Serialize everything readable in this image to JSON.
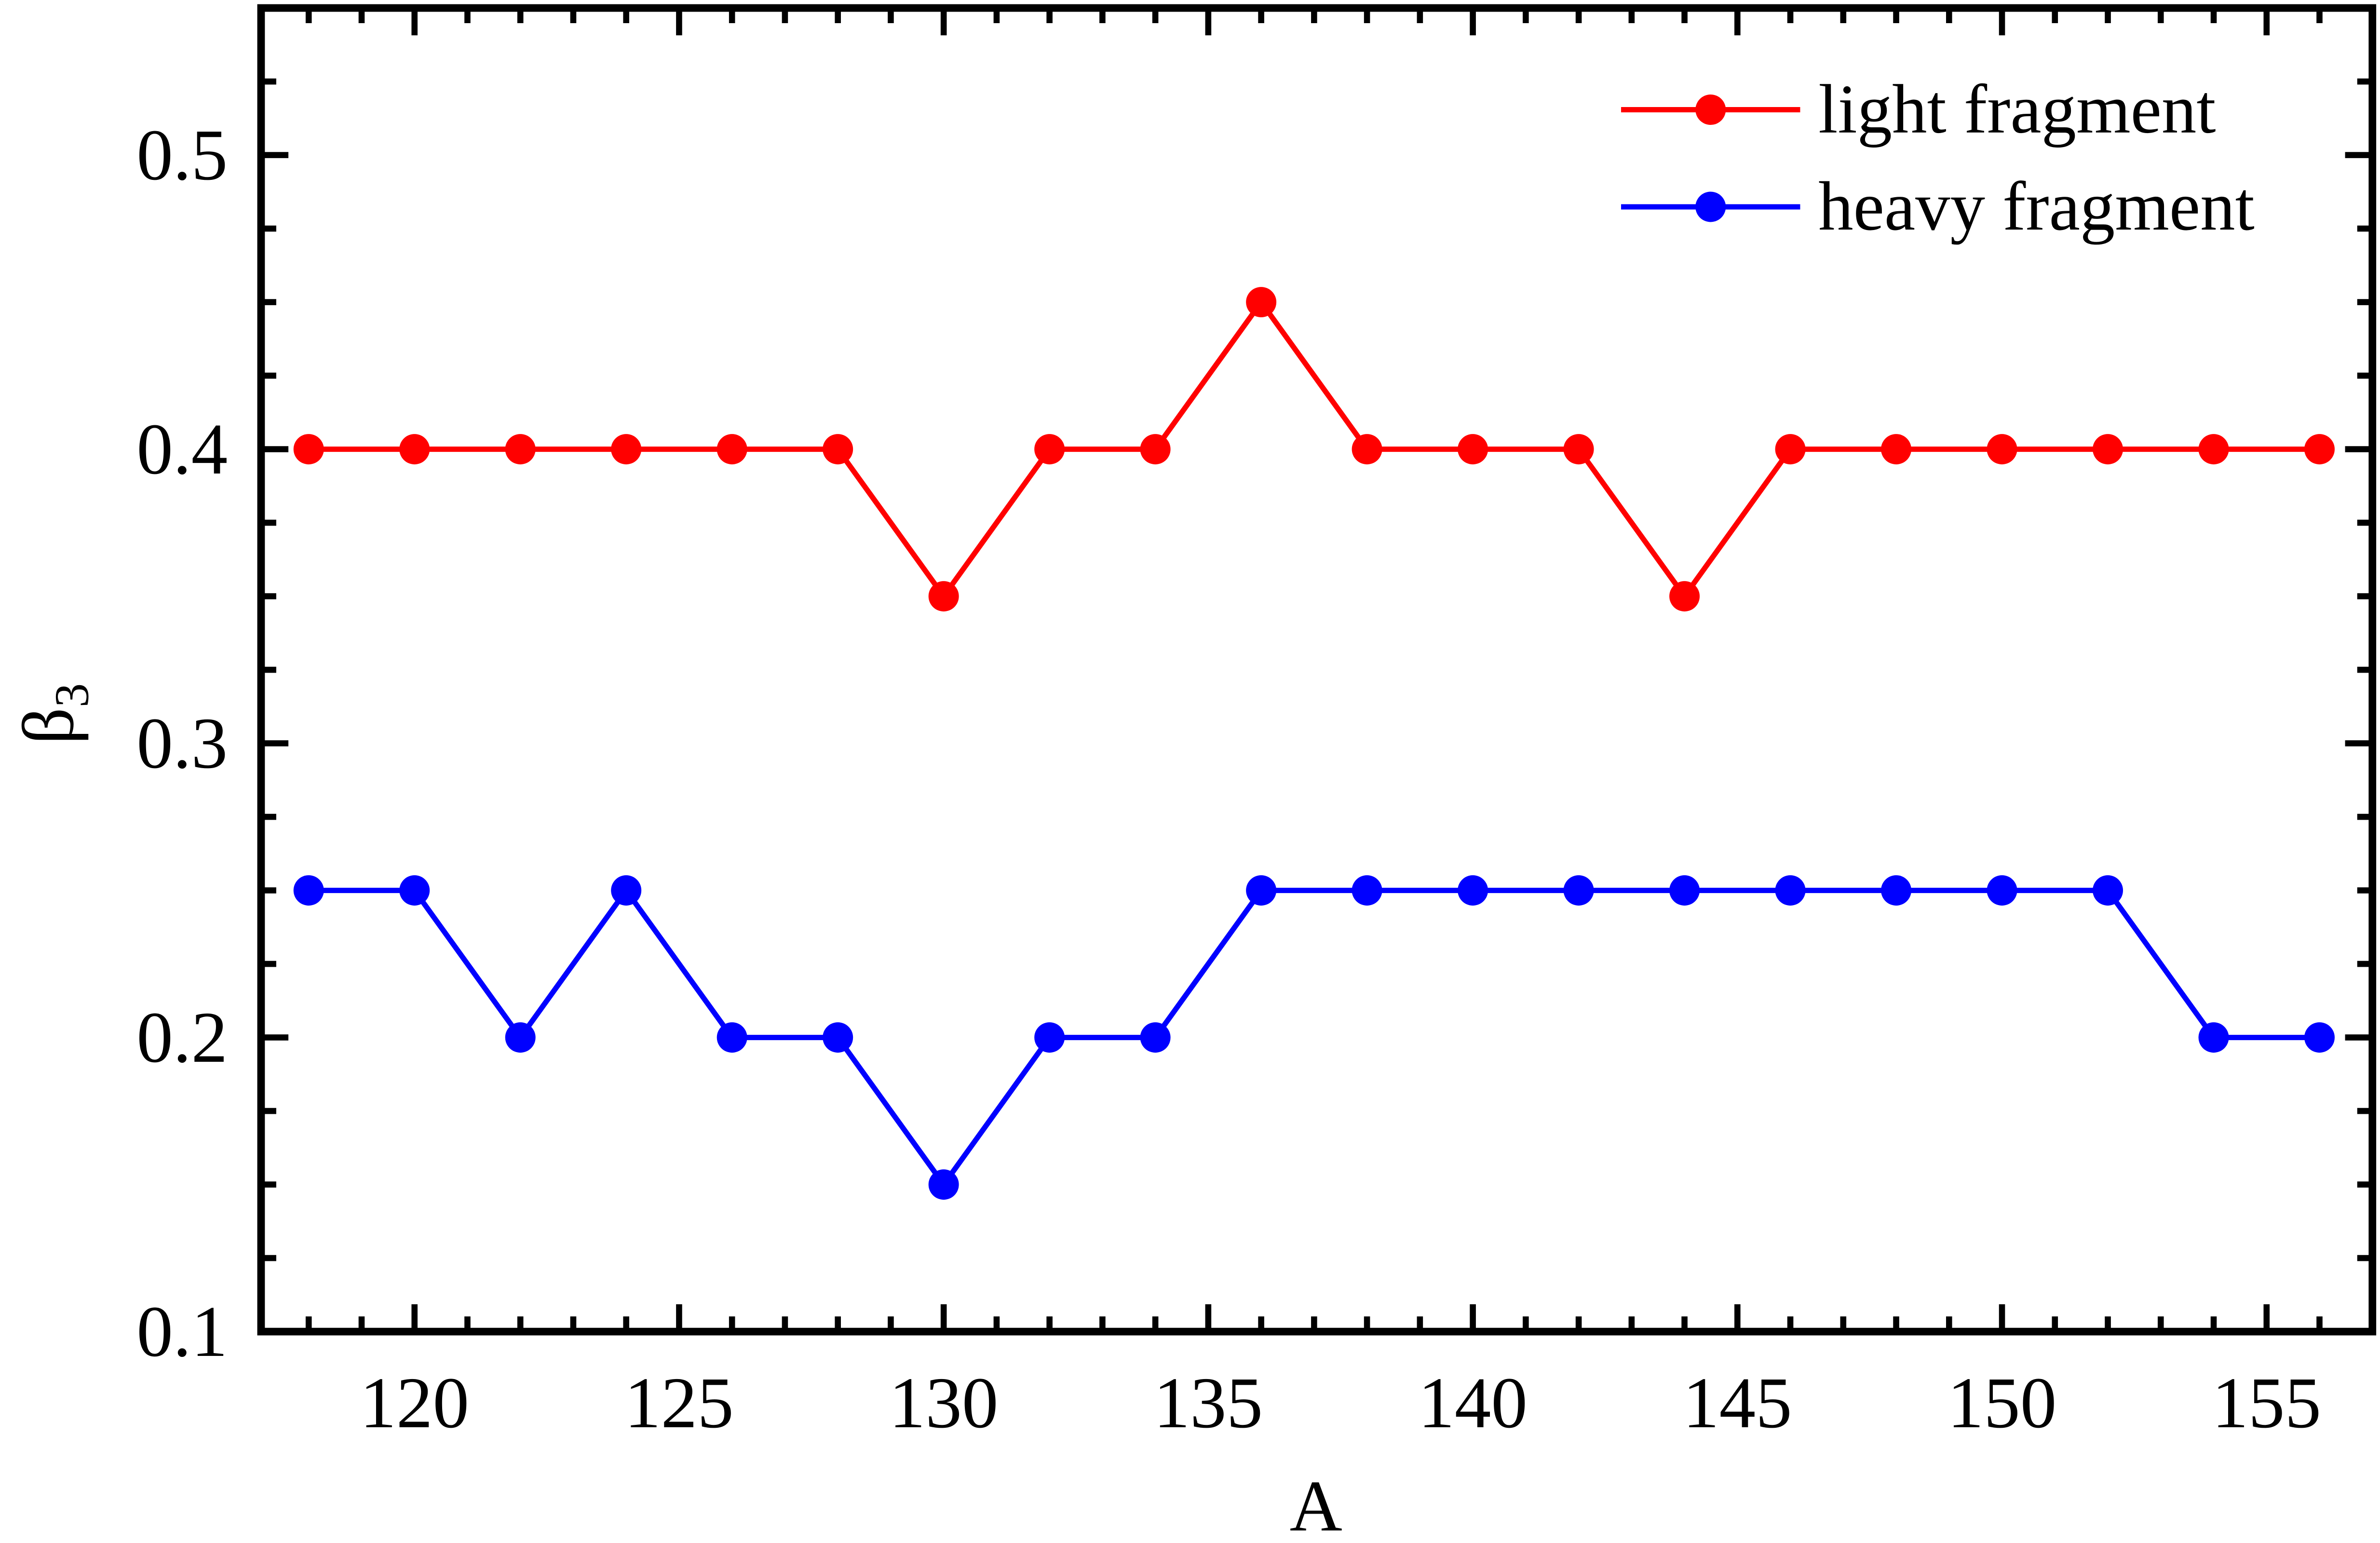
{
  "chart_data": {
    "type": "line",
    "title": "",
    "xlabel": "A",
    "ylabel": "β",
    "ylabel_subscript": "3",
    "xlim": [
      117.1,
      157
    ],
    "ylim": [
      0.1,
      0.55
    ],
    "xticks": [
      120,
      125,
      130,
      135,
      140,
      145,
      150,
      155
    ],
    "yticks": [
      0.1,
      0.2,
      0.3,
      0.4,
      0.5
    ],
    "ytick_labels": [
      "0.1",
      "0.2",
      "0.3",
      "0.4",
      "0.5"
    ],
    "grid": false,
    "legend_position": "top-right",
    "x": [
      118,
      120,
      122,
      124,
      126,
      128,
      130,
      132,
      134,
      136,
      138,
      140,
      142,
      144,
      146,
      148,
      150,
      152,
      154,
      156
    ],
    "series": [
      {
        "name": "light fragment",
        "color": "#ff0000",
        "values": [
          0.4,
          0.4,
          0.4,
          0.4,
          0.4,
          0.4,
          0.35,
          0.4,
          0.4,
          0.45,
          0.4,
          0.4,
          0.4,
          0.35,
          0.4,
          0.4,
          0.4,
          0.4,
          0.4,
          0.4
        ]
      },
      {
        "name": "heavy fragment",
        "color": "#0000ff",
        "values": [
          0.25,
          0.25,
          0.2,
          0.25,
          0.2,
          0.2,
          0.15,
          0.2,
          0.2,
          0.25,
          0.25,
          0.25,
          0.25,
          0.25,
          0.25,
          0.25,
          0.25,
          0.25,
          0.2,
          0.2
        ]
      }
    ]
  }
}
